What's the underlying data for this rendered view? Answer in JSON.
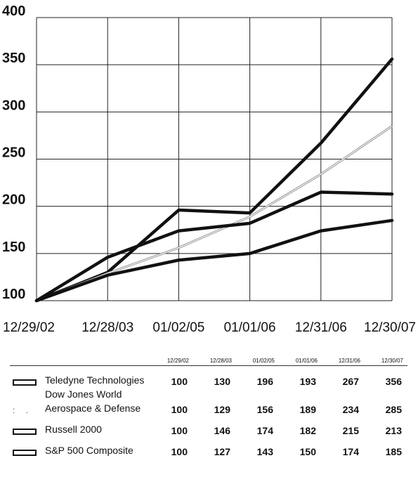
{
  "chart_data": {
    "type": "line",
    "categories": [
      "12/29/02",
      "12/28/03",
      "01/02/05",
      "01/01/06",
      "12/31/06",
      "12/30/07"
    ],
    "ylim": [
      100,
      400
    ],
    "yticks": [
      "100",
      "150",
      "200",
      "250",
      "300",
      "350",
      "400"
    ],
    "grid": true,
    "series": [
      {
        "name": "Teledyne Technologies",
        "values": [
          100,
          130,
          196,
          193,
          267,
          356
        ],
        "style": "thick"
      },
      {
        "name": "Dow Jones World Aerospace & Defense",
        "values": [
          100,
          129,
          156,
          189,
          234,
          285
        ],
        "style": "thin"
      },
      {
        "name": "Russell 2000",
        "values": [
          100,
          146,
          174,
          182,
          215,
          213
        ],
        "style": "thick"
      },
      {
        "name": "S&P 500 Composite",
        "values": [
          100,
          127,
          143,
          150,
          174,
          185
        ],
        "style": "thick"
      }
    ]
  },
  "table": {
    "dates": [
      "12/29/02",
      "12/28/03",
      "01/02/05",
      "01/01/06",
      "12/31/06",
      "12/30/07"
    ],
    "rows": [
      {
        "name_line1": "Teledyne Technologies",
        "name_line2": "",
        "values": [
          "100",
          "130",
          "196",
          "193",
          "267",
          "356"
        ],
        "swatch": "solid"
      },
      {
        "name_line1": "Dow Jones World",
        "name_line2": "Aerospace & Defense",
        "values": [
          "100",
          "129",
          "156",
          "189",
          "234",
          "285"
        ],
        "swatch": "dotted"
      },
      {
        "name_line1": "Russell 2000",
        "name_line2": "",
        "values": [
          "100",
          "146",
          "174",
          "182",
          "215",
          "213"
        ],
        "swatch": "solid"
      },
      {
        "name_line1": "S&P 500 Composite",
        "name_line2": "",
        "values": [
          "100",
          "127",
          "143",
          "150",
          "174",
          "185"
        ],
        "swatch": "solid"
      }
    ]
  },
  "colors": {
    "line": "#111111",
    "thin_line": "#8a8a8a",
    "background": "#ffffff"
  }
}
